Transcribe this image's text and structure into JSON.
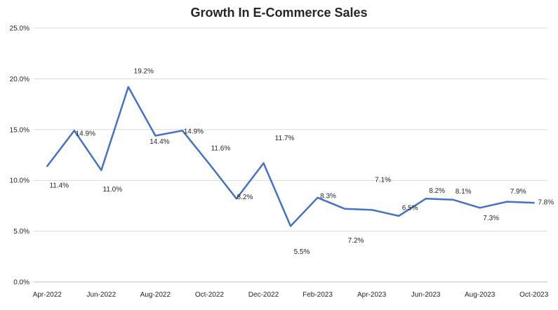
{
  "chart_data": {
    "type": "line",
    "title": "Growth In E-Commerce Sales",
    "xlabel": "",
    "ylabel": "",
    "ylim": [
      0,
      25
    ],
    "yticks": [
      "0.0%",
      "5.0%",
      "10.0%",
      "15.0%",
      "20.0%",
      "25.0%"
    ],
    "grid": true,
    "legend": "none",
    "line_color": "#4472c4",
    "x": [
      "Apr-2022",
      "May-2022",
      "Jun-2022",
      "Jul-2022",
      "Aug-2022",
      "Sep-2022",
      "Oct-2022",
      "Nov-2022",
      "Dec-2022",
      "Jan-2023",
      "Feb-2023",
      "Mar-2023",
      "Apr-2023",
      "May-2023",
      "Jun-2023",
      "Jul-2023",
      "Aug-2023",
      "Sep-2023",
      "Oct-2023"
    ],
    "xticks_shown": [
      "Apr-2022",
      "Jun-2022",
      "Aug-2022",
      "Oct-2022",
      "Dec-2022",
      "Feb-2023",
      "Apr-2023",
      "Jun-2023",
      "Aug-2023",
      "Oct-2023"
    ],
    "values": [
      11.4,
      14.9,
      11.0,
      19.2,
      14.4,
      14.9,
      11.6,
      8.2,
      11.7,
      5.5,
      8.3,
      7.2,
      7.1,
      6.5,
      8.2,
      8.1,
      7.3,
      7.9,
      7.8
    ],
    "data_labels": [
      "11.4%",
      "14.9%",
      "11.0%",
      "19.2%",
      "14.4%",
      "14.9%",
      "11.6%",
      "8.2%",
      "11.7%",
      "5.5%",
      "8.3%",
      "7.2%",
      "7.1%",
      "6.5%",
      "8.2%",
      "8.1%",
      "7.3%",
      "7.9%",
      "7.8%"
    ]
  }
}
